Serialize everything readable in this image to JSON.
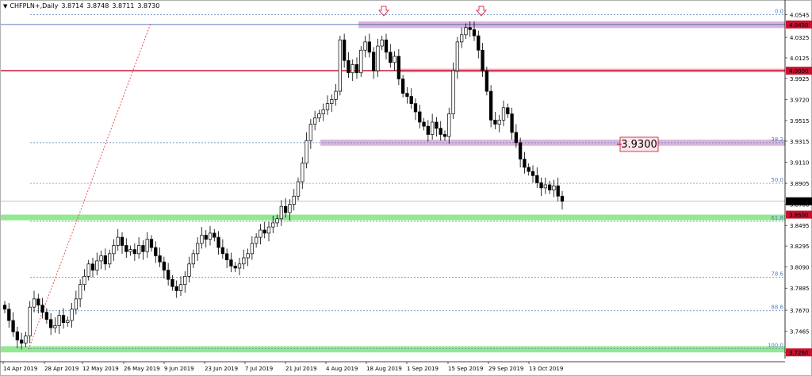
{
  "header": {
    "symbol": "CHFPLN+,Daily",
    "open": "3.8714",
    "high": "3.8748",
    "low": "3.8711",
    "close": "3.8730"
  },
  "colors": {
    "bull": "#ffffff",
    "bear": "#000000",
    "support_zone": "#7fe57f",
    "resistance_zone": "#d4a8d6",
    "red_line": "#c8102e",
    "red_zone": "#f2a0b0",
    "fib": "#5b7fbf",
    "trend": "#e03030",
    "marker": "#d33b55",
    "price_badge": "#c8102e",
    "current_badge": "#000000"
  },
  "chart_data": {
    "type": "candlestick",
    "symbol": "CHFPLN+",
    "timeframe": "Daily",
    "ylim": [
      3.72,
      4.058
    ],
    "y_ticks": [
      "4.0545",
      "4.0325",
      "4.0125",
      "3.9925",
      "3.9720",
      "3.9515",
      "3.9315",
      "3.9110",
      "3.8905",
      "3.8700",
      "3.8495",
      "3.8295",
      "3.8090",
      "3.7885",
      "3.7670",
      "3.7465",
      "3.7260"
    ],
    "x_ticks": [
      "14 Apr 2019",
      "28 Apr 2019",
      "12 May 2019",
      "26 May 2019",
      "9 Jun 2019",
      "23 Jun 2019",
      "7 Jul 2019",
      "21 Jul 2019",
      "4 Aug 2019",
      "18 Aug 2019",
      "1 Sep 2019",
      "15 Sep 2019",
      "29 Sep 2019",
      "13 Oct 2019"
    ],
    "candles_close": [
      3.768,
      3.757,
      3.746,
      3.738,
      3.735,
      3.742,
      3.77,
      3.778,
      3.772,
      3.765,
      3.758,
      3.75,
      3.752,
      3.762,
      3.755,
      3.757,
      3.768,
      3.778,
      3.792,
      3.8,
      3.812,
      3.806,
      3.815,
      3.82,
      3.812,
      3.822,
      3.83,
      3.838,
      3.83,
      3.824,
      3.826,
      3.822,
      3.83,
      3.824,
      3.836,
      3.828,
      3.82,
      3.814,
      3.806,
      3.797,
      3.79,
      3.786,
      3.792,
      3.8,
      3.812,
      3.822,
      3.832,
      3.84,
      3.836,
      3.842,
      3.838,
      3.828,
      3.822,
      3.816,
      3.81,
      3.808,
      3.812,
      3.818,
      3.822,
      3.832,
      3.838,
      3.845,
      3.842,
      3.848,
      3.852,
      3.856,
      3.868,
      3.862,
      3.87,
      3.878,
      3.892,
      3.91,
      3.932,
      3.948,
      3.954,
      3.958,
      3.962,
      3.968,
      3.972,
      3.98,
      4.03,
      4.01,
      3.998,
      4.006,
      3.998,
      4.02,
      4.028,
      4.018,
      4.0,
      4.024,
      4.03,
      4.018,
      4.008,
      4.014,
      3.992,
      3.978,
      3.975,
      3.968,
      3.96,
      3.95,
      3.946,
      3.938,
      3.95,
      3.944,
      3.938,
      3.936,
      3.958,
      4.0,
      4.028,
      4.035,
      4.042,
      4.04,
      4.034,
      4.02,
      4.0,
      3.98,
      3.952,
      3.948,
      3.952,
      3.964,
      3.958,
      3.94,
      3.93,
      3.914,
      3.906,
      3.902,
      3.898,
      3.891,
      3.886,
      3.889,
      3.884,
      3.888,
      3.878,
      3.873
    ],
    "annotations": {
      "resistance_top": {
        "from": 4.0415,
        "to": 4.048,
        "badge": "4.0450"
      },
      "red_line": {
        "value": 4.0,
        "badge": "4.0000",
        "zone": [
          3.9985,
          4.002
        ]
      },
      "mid_zone": {
        "from": 3.927,
        "to": 3.933,
        "label": "3.9300"
      },
      "support_zone": {
        "from": 3.8545,
        "to": 3.86,
        "badge": "3.8600"
      },
      "bottom_zone": {
        "from": 3.726,
        "to": 3.732,
        "badge": "3.7260"
      },
      "current_price": {
        "value": 3.873,
        "badge": "3.8730"
      },
      "fib_levels": [
        {
          "label": "0.0",
          "value": 4.0545
        },
        {
          "label": "38.2",
          "value": 3.93
        },
        {
          "label": "50.0",
          "value": 3.8905
        },
        {
          "label": "61.8",
          "value": 3.8535
        },
        {
          "label": "78.6",
          "value": 3.799
        },
        {
          "label": "88.6",
          "value": 3.7665
        },
        {
          "label": "100.0",
          "value": 3.7295
        }
      ]
    }
  }
}
